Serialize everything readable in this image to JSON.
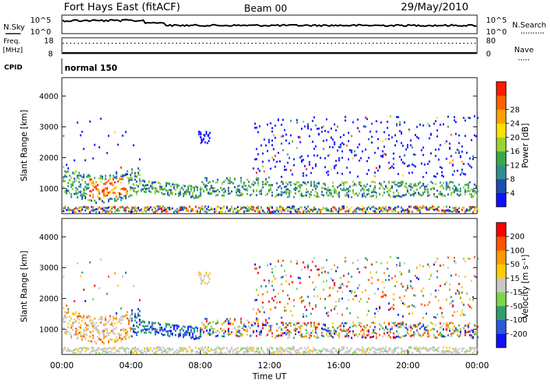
{
  "header": {
    "title": "Fort Hays East (fitACF)",
    "beam": "Beam 00",
    "date": "29/May/2010"
  },
  "strips": {
    "nsky_label": "N.Sky",
    "nsky_ticks": [
      "10^5",
      "10^0"
    ],
    "nsearch_label": "N.Search",
    "nsearch_ticks": [
      "10^5",
      "10^0"
    ],
    "freq_label": "Freq.",
    "freq_unit": "[MHz]",
    "freq_ticks": [
      "18",
      "8"
    ],
    "nave_label": "Nave",
    "nave_ticks": [
      "80",
      "0"
    ],
    "cpid_label": "CPID",
    "cpid_value": "normal 150"
  },
  "chart_data": [
    {
      "type": "heatmap",
      "name": "power-panel",
      "ylabel": "Slant Range [km]",
      "ylim": [
        180,
        4600
      ],
      "yticks": [
        "1000",
        "2000",
        "3000",
        "4000"
      ],
      "xlim": [
        0,
        24
      ],
      "colorbar": {
        "label": "Power [dB]",
        "ticks": [
          "4",
          "8",
          "12",
          "16",
          "20",
          "24",
          "28"
        ],
        "colors": [
          "#1010ff",
          "#1a4fb0",
          "#2f8f8f",
          "#3aa84a",
          "#9bd32e",
          "#ffe000",
          "#ffa000",
          "#ff6000",
          "#ff1a00"
        ]
      }
    },
    {
      "type": "heatmap",
      "name": "velocity-panel",
      "ylabel": "Slant Range [km]",
      "ylim": [
        180,
        4600
      ],
      "yticks": [
        "1000",
        "2000",
        "3000",
        "4000"
      ],
      "xlim": [
        0,
        24
      ],
      "xlabel": "Time UT",
      "xticks": [
        "00:00",
        "04:00",
        "08:00",
        "12:00",
        "16:00",
        "20:00",
        "00:00"
      ],
      "colorbar": {
        "label": "Velocity [m s⁻¹]",
        "ticks": [
          "200",
          "100",
          "50",
          "15",
          "-15",
          "-50",
          "-100",
          "-200"
        ],
        "colors": [
          "#1010ff",
          "#2a5ad8",
          "#2e9e6a",
          "#7cd64a",
          "#c8c8c8",
          "#ffcc00",
          "#ff9900",
          "#ff5500",
          "#ff0000"
        ]
      }
    }
  ]
}
